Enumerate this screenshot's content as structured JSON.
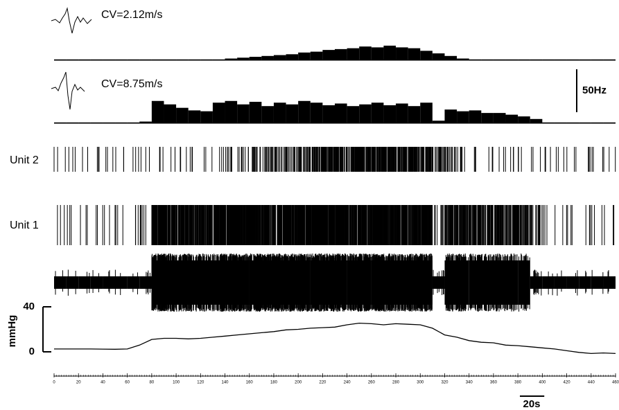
{
  "chart_data": [
    {
      "type": "histogram",
      "title": "CV=2.12m/s",
      "raster_label": "Unit 2",
      "color": "#000000",
      "bins": [
        0,
        10,
        20,
        30,
        40,
        50,
        60,
        70,
        80,
        90,
        100,
        110,
        120,
        130,
        140,
        150,
        160,
        170,
        180,
        190,
        200,
        210,
        220,
        230,
        240,
        250,
        260,
        270,
        280,
        290,
        300,
        310,
        320,
        330,
        340,
        350,
        360,
        370,
        380,
        390,
        400,
        410,
        420,
        430,
        440,
        450,
        460
      ],
      "values": [
        1,
        1,
        1,
        1,
        1,
        1,
        1,
        1,
        1,
        1,
        1,
        1,
        1,
        1,
        2,
        3,
        4,
        5,
        6,
        7,
        9,
        10,
        12,
        13,
        14,
        16,
        15,
        17,
        15,
        14,
        11,
        8,
        5,
        2,
        1,
        1,
        1,
        1,
        1,
        1,
        1,
        1,
        1,
        1,
        1,
        1
      ]
    },
    {
      "type": "histogram",
      "title": "CV=8.75m/s",
      "raster_label": "Unit 1",
      "color": "#000000",
      "scale_bar": {
        "value": 50,
        "label": "50Hz"
      },
      "bins": [
        0,
        10,
        20,
        30,
        40,
        50,
        60,
        70,
        80,
        90,
        100,
        110,
        120,
        130,
        140,
        150,
        160,
        170,
        180,
        190,
        200,
        210,
        220,
        230,
        240,
        250,
        260,
        270,
        280,
        290,
        300,
        310,
        320,
        330,
        340,
        350,
        360,
        370,
        380,
        390,
        400,
        410,
        420,
        430,
        440,
        450,
        460
      ],
      "values": [
        1,
        1,
        1,
        1,
        1,
        1,
        1,
        2,
        26,
        22,
        18,
        15,
        14,
        24,
        26,
        22,
        25,
        20,
        24,
        22,
        26,
        24,
        21,
        23,
        20,
        22,
        24,
        21,
        23,
        20,
        24,
        3,
        16,
        14,
        15,
        12,
        12,
        10,
        8,
        5,
        1,
        1,
        1,
        1,
        1,
        1
      ]
    },
    {
      "type": "line",
      "ylabel": "mmHg",
      "color": "#000000",
      "x": [
        0,
        10,
        20,
        30,
        40,
        50,
        60,
        70,
        80,
        90,
        100,
        110,
        120,
        130,
        140,
        150,
        160,
        170,
        180,
        190,
        200,
        210,
        220,
        230,
        240,
        250,
        260,
        270,
        280,
        290,
        300,
        310,
        320,
        330,
        340,
        350,
        360,
        370,
        380,
        390,
        400,
        410,
        420,
        430,
        440,
        450,
        460
      ],
      "values": [
        2.5,
        2.5,
        2.5,
        2.5,
        2.4,
        2.3,
        2.5,
        6,
        11,
        12,
        12,
        11.5,
        12,
        13,
        14,
        15,
        16,
        17,
        18,
        19.5,
        20,
        21,
        21.5,
        22,
        24,
        25.5,
        25,
        24,
        25,
        24.5,
        24,
        21,
        15,
        13,
        10,
        8.5,
        8,
        6,
        5.5,
        4.5,
        3.5,
        2.5,
        1,
        -0.5,
        -1.5,
        -1,
        -1.5
      ],
      "ylim": [
        0,
        40
      ],
      "yticks": [
        0,
        40
      ],
      "xlim": [
        0,
        460
      ],
      "xticks": [
        0,
        20,
        40,
        60,
        80,
        100,
        120,
        140,
        160,
        180,
        200,
        220,
        240,
        260,
        280,
        300,
        320,
        340,
        360,
        380,
        400,
        420,
        440,
        460
      ],
      "scale_bar": {
        "value": 20,
        "label": "20s"
      }
    }
  ]
}
